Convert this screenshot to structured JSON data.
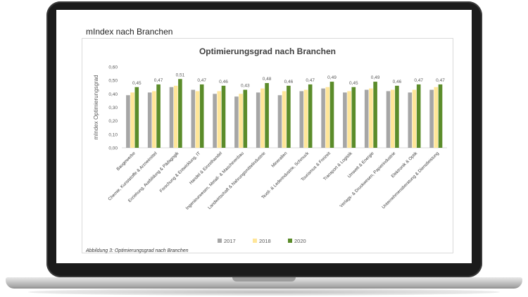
{
  "page": {
    "heading": "mIndex nach Branchen",
    "caption": "Abbildung 3: Optimierungsgrad nach Branchen"
  },
  "colors": {
    "s2017": "#a6a6a6",
    "s2018": "#ffe699",
    "s2020": "#5b8c2a"
  },
  "chart_data": {
    "type": "bar",
    "title": "Optimierungsgrad nach Branchen",
    "ylabel": "mIndex Optimierungsgrad",
    "xlabel": "",
    "ylim": [
      0,
      0.6
    ],
    "yticks": [
      "0,00",
      "0,10",
      "0,20",
      "0,30",
      "0,40",
      "0,50",
      "0,60"
    ],
    "grid": false,
    "legend_position": "bottom",
    "categories": [
      "Baugewerbe",
      "Chemie, Kunststoffe & Arzneimittel",
      "Erziehung, Ausbildung & Pädagogik",
      "Forschung & Entwicklung, IT",
      "Handel & Einzelhandel",
      "Ingenieurwesen, Metall- & Maschinenbau",
      "Landwirtschaft & Nahrungsmittelindustrie",
      "Mineralien",
      "Textil- & Lederindustrie, Schmuck",
      "Tourismus & Freizeit",
      "Transport & Logistik",
      "Umwelt & Energie",
      "Verlags- & Druckwesen, Papierindustrie",
      "Elektronik & Optik",
      "Unternehmensberatung & Dienstleistung"
    ],
    "series": [
      {
        "name": "2017",
        "values": [
          0.39,
          0.41,
          0.45,
          0.43,
          0.4,
          0.38,
          0.41,
          0.39,
          0.42,
          0.44,
          0.41,
          0.43,
          0.42,
          0.41,
          0.43
        ]
      },
      {
        "name": "2018",
        "values": [
          0.41,
          0.42,
          0.46,
          0.42,
          0.42,
          0.4,
          0.44,
          0.42,
          0.43,
          0.45,
          0.42,
          0.44,
          0.43,
          0.43,
          0.45
        ]
      },
      {
        "name": "2020",
        "values": [
          0.45,
          0.47,
          0.51,
          0.47,
          0.46,
          0.43,
          0.48,
          0.46,
          0.47,
          0.49,
          0.45,
          0.49,
          0.46,
          0.47,
          0.47
        ]
      }
    ],
    "data_labels": [
      "0,45",
      "0,47",
      "0,51",
      "0,47",
      "0,46",
      "0,43",
      "0,48",
      "0,46",
      "0,47",
      "0,49",
      "0,45",
      "0,49",
      "0,46",
      "0,47",
      "0,47"
    ]
  }
}
